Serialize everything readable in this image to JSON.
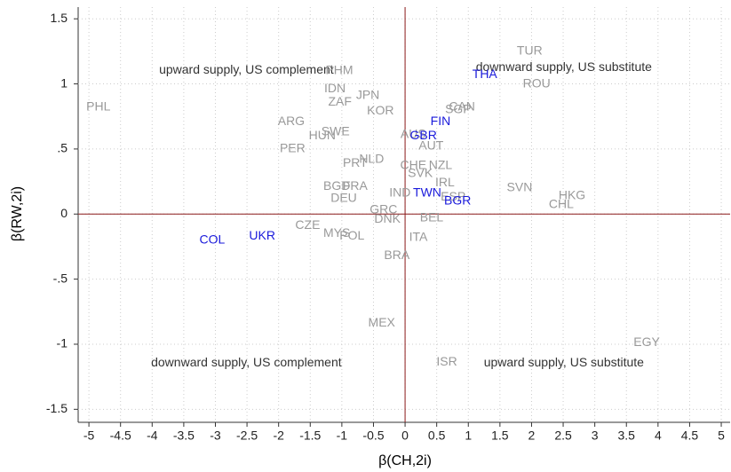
{
  "chart_data": {
    "type": "scatter",
    "x_label": "β(CH,2i)",
    "y_label": "β(RW,2i)",
    "xlim": [
      -5.17,
      5.14
    ],
    "ylim": [
      -1.6,
      1.59
    ],
    "xticks": [
      -5,
      -4.5,
      -4,
      -3.5,
      -3,
      -2.5,
      -2,
      -1.5,
      -1,
      -0.5,
      0,
      0.5,
      1,
      1.5,
      2,
      2.5,
      3,
      3.5,
      4,
      4.5,
      5
    ],
    "yticks": [
      {
        "value": -1.5,
        "label": "-1.5"
      },
      -1,
      {
        "value": -0.5,
        "label": "-.5"
      },
      0,
      {
        "value": 0.5,
        "label": ".5"
      },
      1,
      1.5
    ],
    "grid": true,
    "vline": 0,
    "hline": 0,
    "ref_color": "#8b1a1a",
    "annotations": [
      "upward supply, US complement",
      "downward supply, US substitute",
      "downward supply, US complement",
      "upward supply, US substitute"
    ],
    "labels": [
      "PHL",
      "TUR",
      "ROU",
      "THA",
      "PHM",
      "IDN",
      "JPN",
      "ZAF",
      "KOR",
      "CAN",
      "SGP",
      "FIN",
      "ARG",
      "SWE",
      "HUN",
      "AUS",
      "GBR",
      "AUT",
      "PER",
      "PRT",
      "NLD",
      "CHE",
      "NZL",
      "SVK",
      "IRL",
      "SVN",
      "HKG",
      "CHL",
      "BGD",
      "FRA",
      "DEU",
      "IND",
      "TWN",
      "ESP",
      "BGR",
      "GRC",
      "DNK",
      "BEL",
      "CZE",
      "MYS",
      "POL",
      "ITA",
      "BRA",
      "UKR",
      "COL",
      "MEX",
      "EGY",
      "ISR"
    ],
    "x": [
      -4.85,
      1.97,
      2.08,
      1.26,
      -1.04,
      -1.11,
      -0.59,
      -1.03,
      -0.39,
      0.9,
      0.84,
      0.56,
      -1.8,
      -1.1,
      -1.31,
      0.13,
      0.29,
      0.41,
      -1.78,
      -0.79,
      -0.53,
      0.13,
      0.56,
      0.24,
      0.63,
      1.81,
      2.64,
      2.47,
      -1.08,
      -0.79,
      -0.97,
      -0.08,
      0.35,
      0.76,
      0.83,
      -0.34,
      -0.28,
      0.42,
      -1.54,
      -1.08,
      -0.84,
      0.21,
      -0.13,
      -2.26,
      -3.05,
      -0.37,
      3.82,
      0.66
    ],
    "y": [
      0.82,
      1.25,
      1.0,
      1.07,
      1.1,
      0.96,
      0.91,
      0.86,
      0.79,
      0.82,
      0.8,
      0.71,
      0.71,
      0.63,
      0.6,
      0.61,
      0.6,
      0.52,
      0.5,
      0.39,
      0.42,
      0.37,
      0.37,
      0.31,
      0.24,
      0.2,
      0.14,
      0.07,
      0.21,
      0.21,
      0.12,
      0.16,
      0.16,
      0.13,
      0.1,
      0.03,
      -0.04,
      -0.03,
      -0.09,
      -0.15,
      -0.17,
      -0.18,
      -0.32,
      -0.17,
      -0.2,
      -0.84,
      -0.99,
      -1.14
    ],
    "colors": [
      "#999999",
      "#999999",
      "#999999",
      "#1a1adb",
      "#999999",
      "#999999",
      "#999999",
      "#999999",
      "#999999",
      "#999999",
      "#999999",
      "#1a1adb",
      "#999999",
      "#999999",
      "#999999",
      "#999999",
      "#1a1adb",
      "#999999",
      "#999999",
      "#999999",
      "#999999",
      "#999999",
      "#999999",
      "#999999",
      "#999999",
      "#999999",
      "#999999",
      "#999999",
      "#999999",
      "#999999",
      "#999999",
      "#999999",
      "#1a1adb",
      "#999999",
      "#1a1adb",
      "#999999",
      "#999999",
      "#999999",
      "#999999",
      "#999999",
      "#999999",
      "#999999",
      "#999999",
      "#1a1adb",
      "#1a1adb",
      "#999999",
      "#999999",
      "#999999"
    ]
  }
}
